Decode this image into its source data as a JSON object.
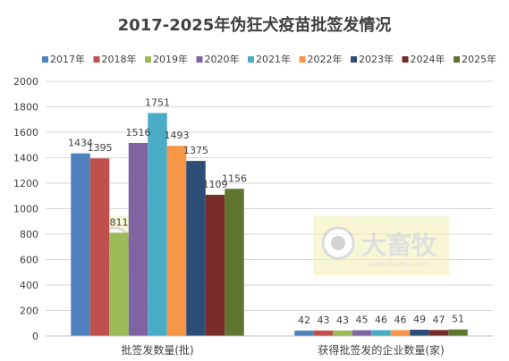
{
  "chart_data": {
    "type": "bar",
    "title": "2017-2025年伪狂犬疫苗批签发情况",
    "categories": [
      "批签发数量(批)",
      "获得批签发的企业数量(家)"
    ],
    "series": [
      {
        "name": "2017年",
        "color": "#4f81bd",
        "values": [
          1434,
          42
        ]
      },
      {
        "name": "2018年",
        "color": "#c0504d",
        "values": [
          1395,
          43
        ]
      },
      {
        "name": "2019年",
        "color": "#9bbb59",
        "values": [
          811,
          43
        ]
      },
      {
        "name": "2020年",
        "color": "#8064a2",
        "values": [
          1516,
          45
        ]
      },
      {
        "name": "2021年",
        "color": "#4bacc6",
        "values": [
          1751,
          46
        ]
      },
      {
        "name": "2022年",
        "color": "#f79646",
        "values": [
          1493,
          46
        ]
      },
      {
        "name": "2023年",
        "color": "#2c4d75",
        "values": [
          1375,
          49
        ]
      },
      {
        "name": "2024年",
        "color": "#772c2a",
        "values": [
          1109,
          47
        ]
      },
      {
        "name": "2025年",
        "color": "#5f7530",
        "values": [
          1156,
          51
        ]
      }
    ],
    "ylim": [
      0,
      2000
    ],
    "yticks": [
      0,
      200,
      400,
      600,
      800,
      1000,
      1200,
      1400,
      1600,
      1800,
      2000
    ],
    "grid": true,
    "legend_position": "top",
    "watermark": {
      "text": "大畜牧",
      "subtext": "www.dxumu.com"
    }
  }
}
